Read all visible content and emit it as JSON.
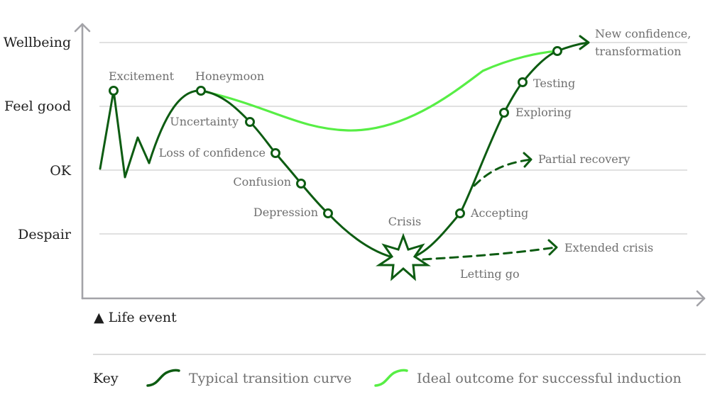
{
  "y_levels": [
    "Wellbeing",
    "Feel good",
    "OK",
    "Despair"
  ],
  "life_event": "▲ Life event",
  "stages": {
    "excitement": "Excitement",
    "honeymoon": "Honeymoon",
    "uncertainty": "Uncertainty",
    "loss_of_confidence": "Loss of confidence",
    "confusion": "Confusion",
    "depression": "Depression",
    "crisis": "Crisis",
    "letting_go": "Letting go",
    "accepting": "Accepting",
    "exploring": "Exploring",
    "testing": "Testing",
    "new_confidence_1": "New confidence,",
    "new_confidence_2": "transformation",
    "partial_recovery": "Partial recovery",
    "extended_crisis": "Extended crisis"
  },
  "key": {
    "title": "Key",
    "typical": "Typical transition curve",
    "ideal": "Ideal outcome for successful induction"
  },
  "colors": {
    "typical": "#0d5c12",
    "ideal": "#57ee45",
    "axis": "#a3a3a8",
    "grid": "#cfcfcf"
  }
}
